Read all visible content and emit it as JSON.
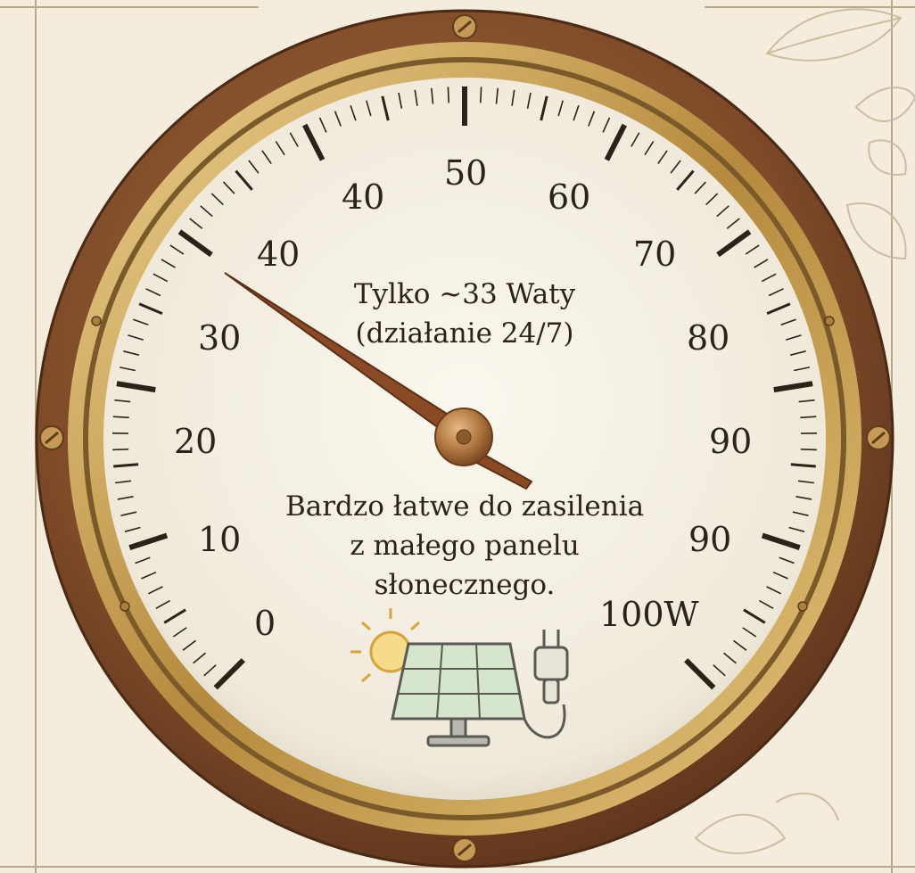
{
  "gauge": {
    "unit": "W",
    "range": [
      0,
      100
    ],
    "needle_value": 33,
    "scale_labels": [
      "0",
      "10",
      "20",
      "30",
      "40",
      "40",
      "50",
      "60",
      "70",
      "80",
      "90",
      "90",
      "100W"
    ],
    "reading_lines": [
      "Tylko ~33 Waty",
      "(działanie 24/7)"
    ],
    "note_lines": [
      "Bardzo łatwe do zasilenia",
      "z małego panelu",
      "słonecznego."
    ]
  },
  "icons": [
    "sun-icon",
    "solar-panel-icon",
    "plug-icon",
    "screw-icon",
    "leaf-decoration-icon"
  ],
  "colors": {
    "background": "#f4ecdc",
    "bezel_wood": "#8a5430",
    "brass_ring": "#c9a45a",
    "dial_face": "#f5f1e6",
    "needle": "#8a4a26",
    "ink": "#2c2218"
  }
}
